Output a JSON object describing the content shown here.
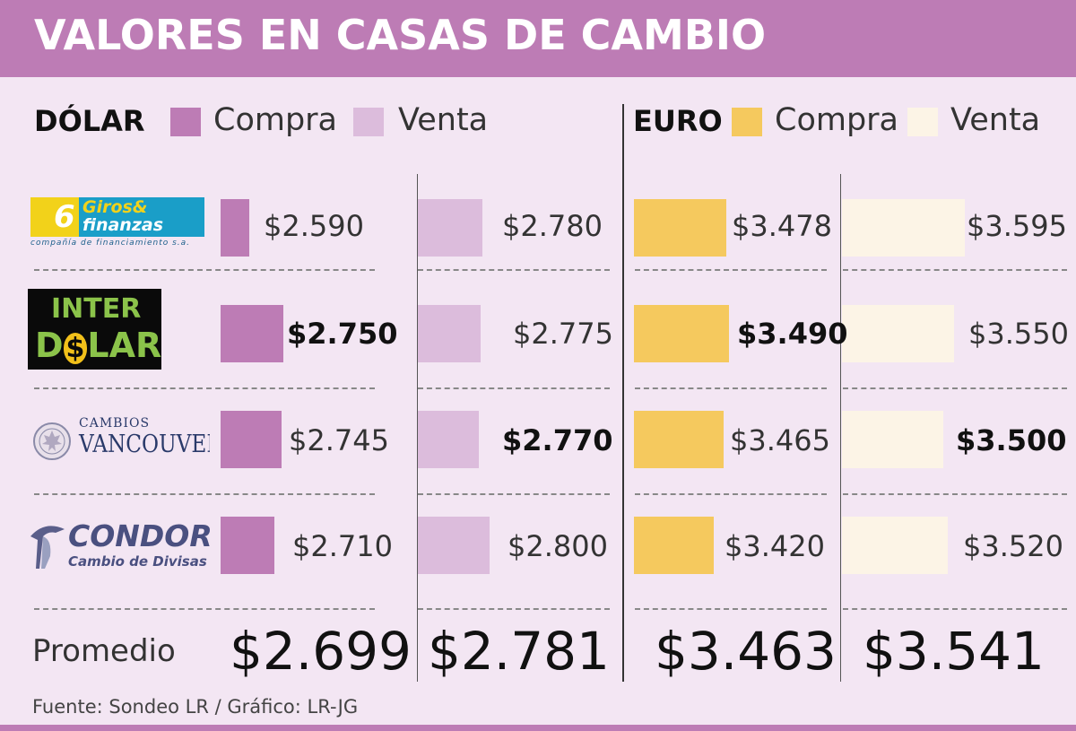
{
  "title": "VALORES EN CASAS DE CAMBIO",
  "colors": {
    "header": "#bd7cb5",
    "background": "#f3e6f3",
    "dolar_compra": "#bd7cb5",
    "dolar_venta": "#dcbcdc",
    "euro_compra": "#f5c95e",
    "euro_venta": "#fcf4e6"
  },
  "legend": {
    "dolar_title": "DÓLAR",
    "euro_title": "EURO",
    "compra": "Compra",
    "venta": "Venta"
  },
  "logos": [
    {
      "icon": "giros-finanzas-logo",
      "line1": "Giros&",
      "line2": "finanzas",
      "tagline": "compañía de financiamiento s.a."
    },
    {
      "icon": "interdolar-logo",
      "line1": "INTER",
      "line2a": "D",
      "line2b": "$",
      "line2c": "LAR"
    },
    {
      "icon": "cambios-vancouver-logo",
      "line1": "CAMBIOS",
      "line2": "VANCOUVER"
    },
    {
      "icon": "condor-logo",
      "line1": "CONDOR",
      "line2": "Cambio de Divisas"
    }
  ],
  "chart_data": {
    "type": "bar",
    "title": "VALORES EN CASAS DE CAMBIO",
    "categories": [
      "Giros & Finanzas",
      "Inter Dólar",
      "Cambios Vancouver",
      "Condor"
    ],
    "series": [
      {
        "name": "Dólar Compra",
        "values": [
          2590,
          2750,
          2745,
          2710
        ],
        "labels": [
          "$2.590",
          "$2.750",
          "$2.745",
          "$2.710"
        ],
        "bold": [
          false,
          true,
          false,
          false
        ]
      },
      {
        "name": "Dólar Venta",
        "values": [
          2780,
          2775,
          2770,
          2800
        ],
        "labels": [
          "$2.780",
          "$2.775",
          "$2.770",
          "$2.800"
        ],
        "bold": [
          false,
          false,
          true,
          false
        ]
      },
      {
        "name": "Euro Compra",
        "values": [
          3478,
          3490,
          3465,
          3420
        ],
        "labels": [
          "$3.478",
          "$3.490",
          "$3.465",
          "$3.420"
        ],
        "bold": [
          false,
          true,
          false,
          false
        ]
      },
      {
        "name": "Euro Venta",
        "values": [
          3595,
          3550,
          3500,
          3520
        ],
        "labels": [
          "$3.595",
          "$3.550",
          "$3.500",
          "$3.520"
        ],
        "bold": [
          false,
          false,
          true,
          false
        ]
      }
    ],
    "averages": {
      "label": "Promedio",
      "values": [
        "$2.699",
        "$2.781",
        "$3.463",
        "$3.541"
      ]
    },
    "source": "Fuente: Sondeo LR / Gráfico: LR-JG"
  }
}
